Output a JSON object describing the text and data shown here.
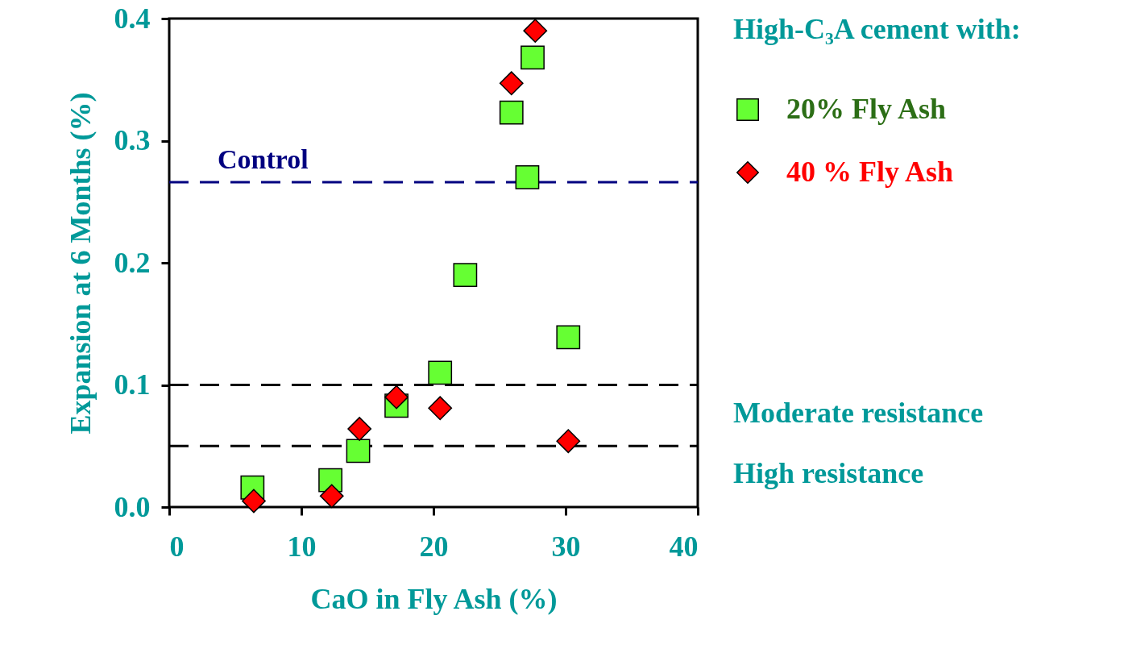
{
  "chart_data": {
    "type": "scatter",
    "xlabel": "CaO in Fly Ash (%)",
    "ylabel": "Expansion at 6 Months (%)",
    "legend_title": "High-C₃A cement with:",
    "xlim": [
      0,
      40
    ],
    "xticks": [
      0,
      10,
      20,
      30,
      40
    ],
    "ylim": [
      0,
      0.4
    ],
    "yticks": [
      {
        "value": 0,
        "label": "0.0"
      },
      0.1,
      0.2,
      0.3,
      0.4
    ],
    "grid": false,
    "legend": "top right",
    "series": [
      {
        "name": "20% Fly Ash",
        "color": "#66ff33",
        "marker": "square",
        "x": [
          6.3,
          12.2,
          14.3,
          17.2,
          20.5,
          22.4,
          25.9,
          27.1,
          27.5,
          30.2
        ],
        "values": [
          0.016,
          0.022,
          0.046,
          0.083,
          0.11,
          0.19,
          0.323,
          0.27,
          0.368,
          0.139
        ]
      },
      {
        "name": "40 % Fly Ash",
        "color": "#ff0000",
        "marker": "diamond",
        "x": [
          6.4,
          12.3,
          14.4,
          17.2,
          20.5,
          25.9,
          27.7,
          30.2
        ],
        "values": [
          0.005,
          0.009,
          0.064,
          0.09,
          0.081,
          0.347,
          0.39,
          0.054
        ]
      }
    ],
    "ref_lines": [
      {
        "axis": "y",
        "value": 0.266,
        "label": "Control",
        "color": "#000080",
        "line_style": "dashed"
      },
      {
        "axis": "y",
        "value": 0.1,
        "label": "Moderate resistance",
        "color": "#000000",
        "line_style": "dashed"
      },
      {
        "axis": "y",
        "value": 0.05,
        "label": "High resistance",
        "color": "#000000",
        "line_style": "dashed"
      }
    ]
  }
}
